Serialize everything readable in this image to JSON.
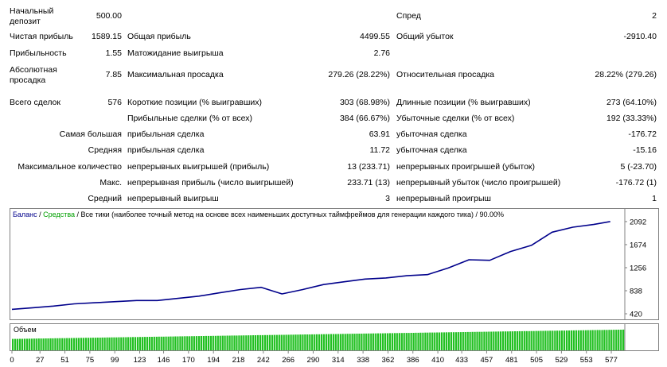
{
  "stats": {
    "initial_deposit_label": "Начальный депозит",
    "initial_deposit": "500.00",
    "spread_label": "Спред",
    "spread": "2",
    "net_profit_label": "Чистая прибыль",
    "net_profit": "1589.15",
    "gross_profit_label": "Общая прибыль",
    "gross_profit": "4499.55",
    "gross_loss_label": "Общий убыток",
    "gross_loss": "-2910.40",
    "profit_factor_label": "Прибыльность",
    "profit_factor": "1.55",
    "expected_payoff_label": "Матожидание выигрыша",
    "expected_payoff": "2.76",
    "abs_drawdown_label": "Абсолютная просадка",
    "abs_drawdown": "7.85",
    "max_drawdown_label": "Максимальная просадка",
    "max_drawdown": "279.26 (28.22%)",
    "rel_drawdown_label": "Относительная просадка",
    "rel_drawdown": "28.22% (279.26)",
    "total_trades_label": "Всего сделок",
    "total_trades": "576",
    "short_label": "Короткие позиции (% выигравших)",
    "short": "303 (68.98%)",
    "long_label": "Длинные позиции (% выигравших)",
    "long": "273 (64.10%)",
    "profit_trades_label": "Прибыльные сделки (% от всех)",
    "profit_trades": "384 (66.67%)",
    "loss_trades_label": "Убыточные сделки (% от всех)",
    "loss_trades": "192 (33.33%)",
    "largest_label": "Самая большая",
    "largest_profit_label": "прибыльная сделка",
    "largest_profit": "63.91",
    "largest_loss_label": "убыточная сделка",
    "largest_loss": "-176.72",
    "average_label": "Средняя",
    "average_profit_label": "прибыльная сделка",
    "average_profit": "11.72",
    "average_loss_label": "убыточная сделка",
    "average_loss": "-15.16",
    "max_count_label": "Максимальное количество",
    "max_consec_wins_label": "непрерывных выигрышей (прибыль)",
    "max_consec_wins": "13 (233.71)",
    "max_consec_losses_label": "непрерывных проигрышей (убыток)",
    "max_consec_losses": "5 (-23.70)",
    "max_label": "Макс.",
    "max_consec_profit_label": "непрерывная прибыль (число выигрышей)",
    "max_consec_profit": "233.71 (13)",
    "max_consec_loss_label": "непрерывный убыток (число проигрышей)",
    "max_consec_loss": "-176.72 (1)",
    "avg_label": "Средний",
    "avg_consec_wins_label": "непрерывный выигрыш",
    "avg_consec_wins": "3",
    "avg_consec_losses_label": "непрерывный проигрыш",
    "avg_consec_losses": "1"
  },
  "chart": {
    "legend_balance": "Баланс",
    "legend_sep": " / ",
    "legend_equity": "Средства",
    "legend_rest": " / Все тики (наиболее точный метод на основе всех наименьших доступных таймфреймов для генерации каждого тика) / 90.00%",
    "volume_label": "Объем",
    "colors": {
      "balance": "#00008b",
      "equity": "#00a000",
      "volume": "#22c022"
    }
  },
  "chart_data": {
    "type": "line",
    "series": [
      {
        "name": "Баланс",
        "x": [
          0,
          20,
          40,
          60,
          80,
          100,
          120,
          140,
          160,
          180,
          200,
          220,
          240,
          260,
          280,
          300,
          320,
          340,
          360,
          380,
          400,
          420,
          440,
          460,
          480,
          500,
          520,
          540,
          560,
          576
        ],
        "y": [
          500,
          530,
          560,
          600,
          620,
          640,
          660,
          660,
          700,
          740,
          800,
          860,
          900,
          780,
          860,
          950,
          1000,
          1050,
          1070,
          1110,
          1130,
          1250,
          1400,
          1390,
          1550,
          1660,
          1900,
          1990,
          2040,
          2092
        ]
      }
    ],
    "y_ticks": [
      2092,
      1674,
      1256,
      838,
      420
    ],
    "ylim": [
      420,
      2120
    ],
    "x_ticks": [
      0,
      27,
      51,
      75,
      99,
      123,
      146,
      170,
      194,
      218,
      242,
      266,
      290,
      314,
      338,
      362,
      386,
      410,
      433,
      457,
      481,
      505,
      529,
      553,
      577
    ],
    "xlim": [
      0,
      590
    ],
    "volume_level": 0.9
  }
}
